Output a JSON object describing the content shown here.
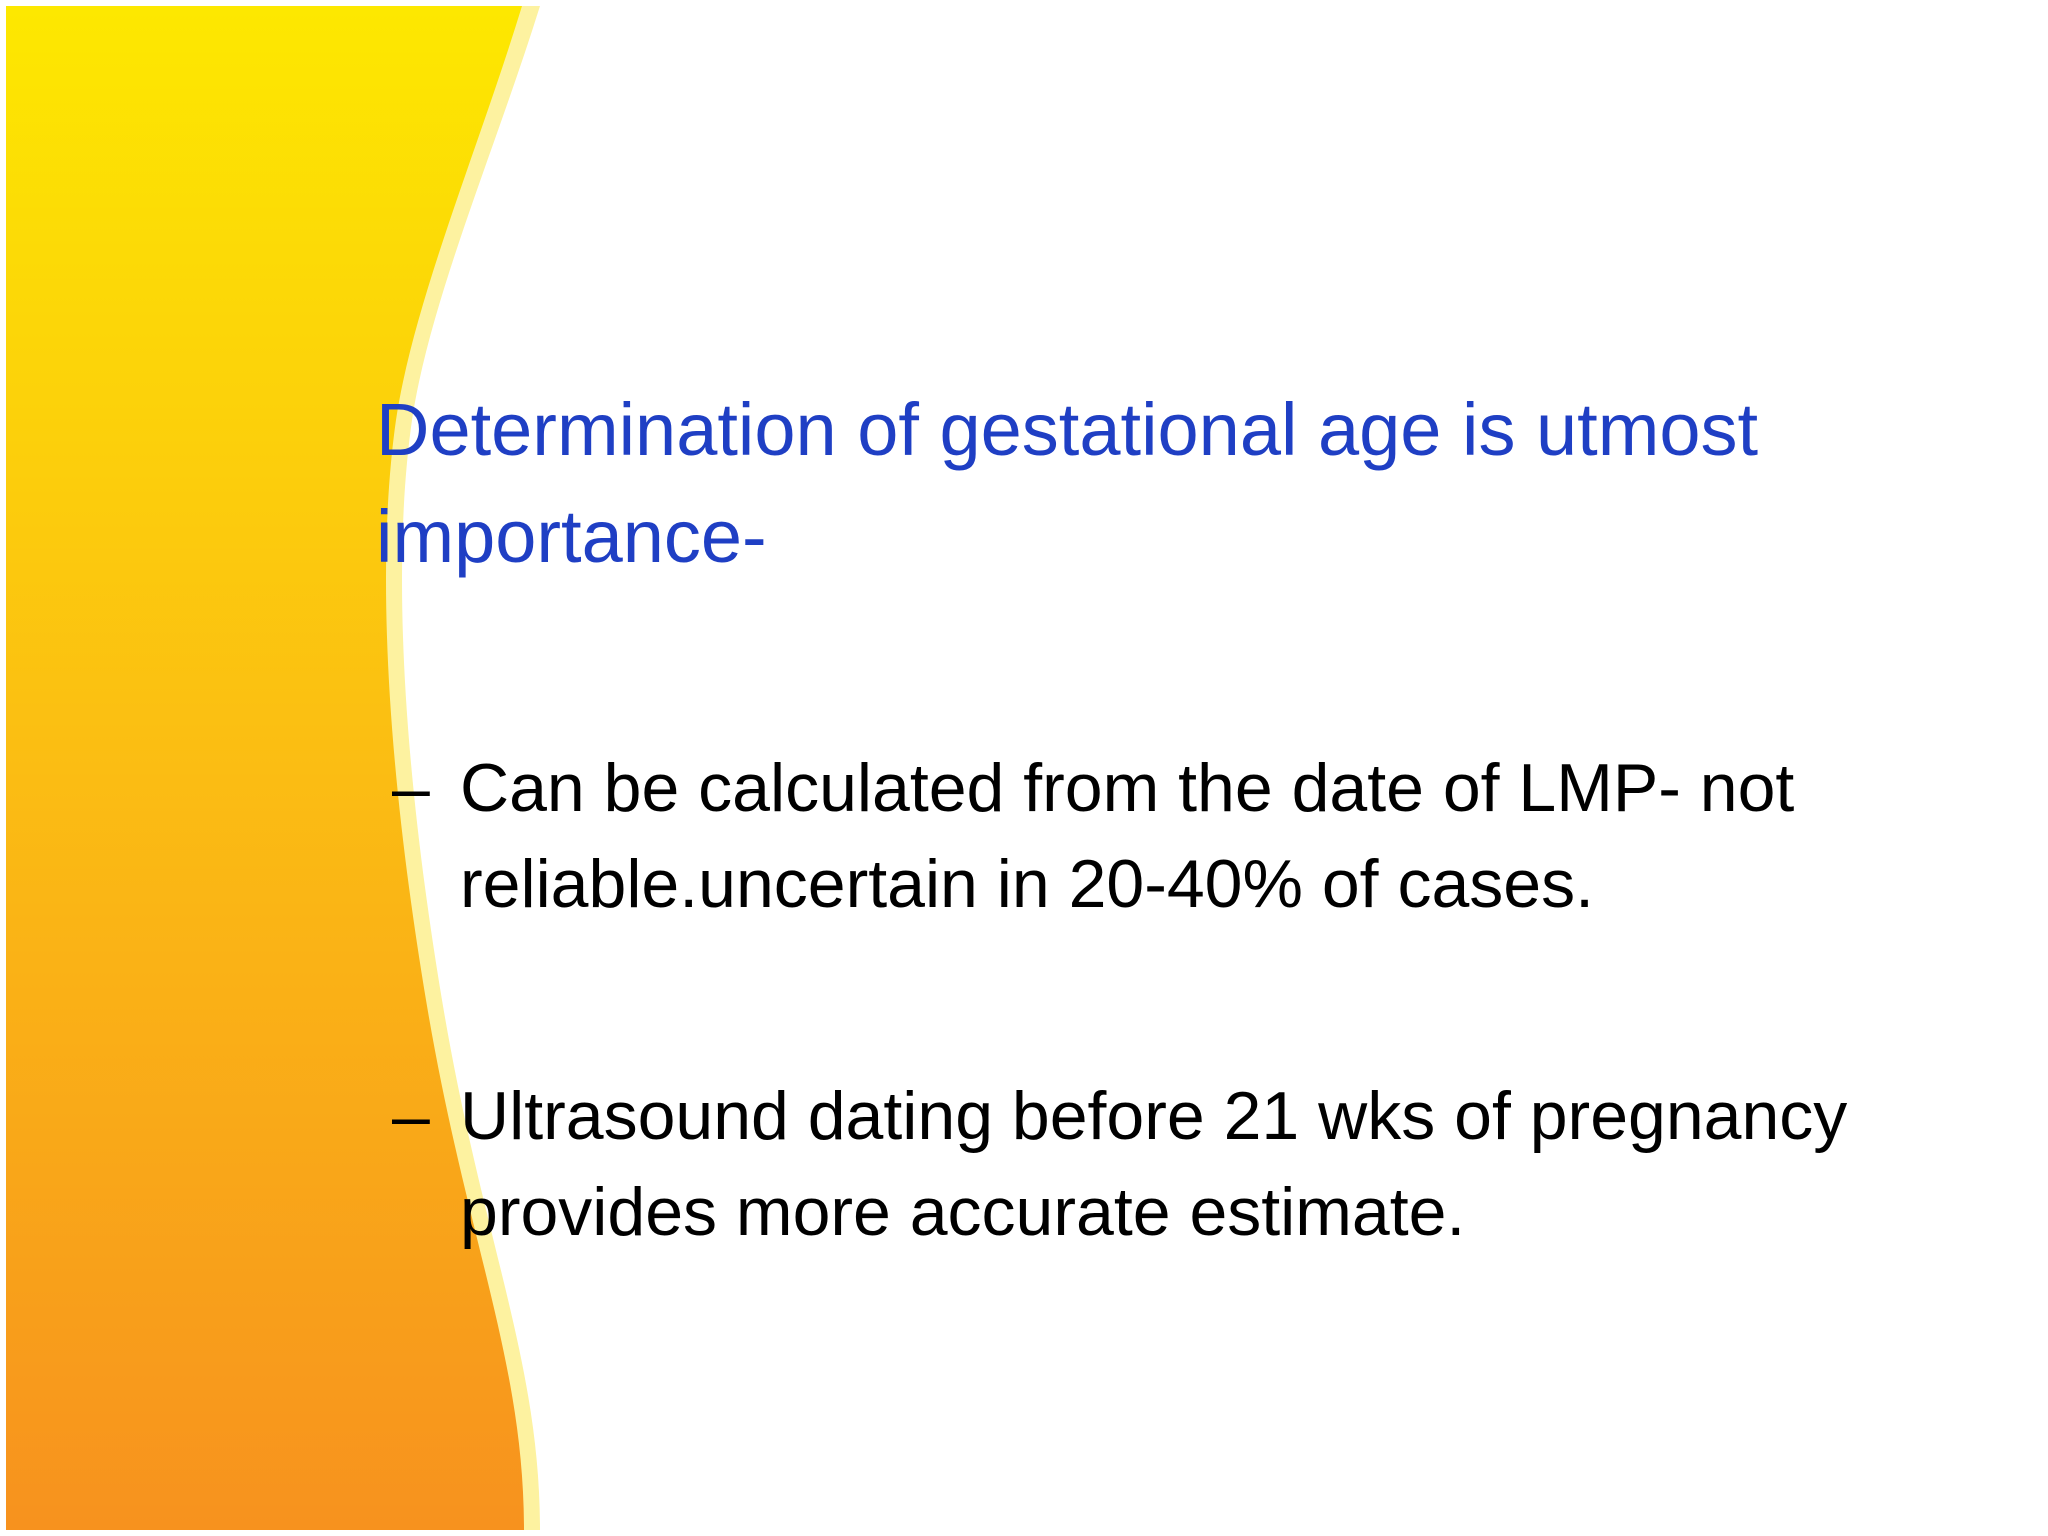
{
  "title": "Determination of gestational age is utmost importance-",
  "bullets": [
    {
      "marker": "–",
      "text": "Can be calculated from the date of LMP- not reliable.uncertain in 20-40% of cases."
    },
    {
      "marker": "–",
      "text": "Ultrasound dating before 21 wks of pregnancy provides more accurate estimate."
    }
  ]
}
